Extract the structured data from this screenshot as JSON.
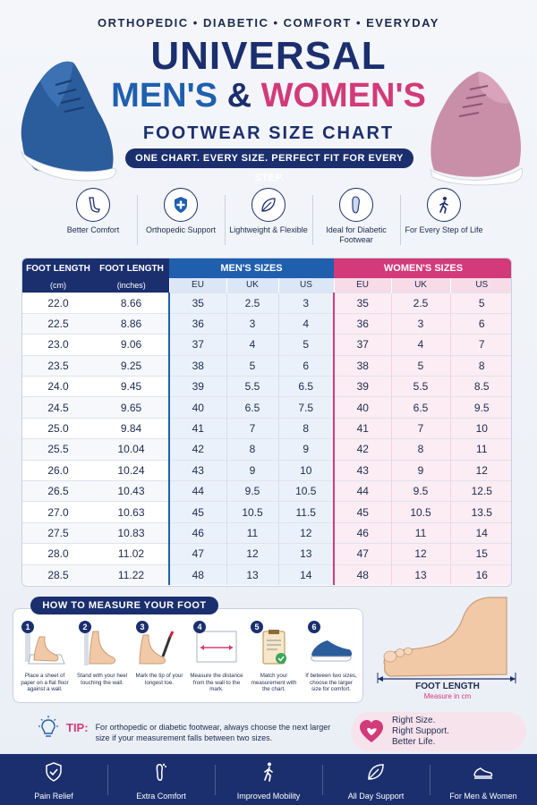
{
  "header": {
    "tagline": "ORTHOPEDIC • DIABETIC • COMFORT • EVERYDAY",
    "title_line1": "UNIVERSAL",
    "title_men": "MEN'S",
    "title_amp": "&",
    "title_women": "WOMEN'S",
    "title_line3": "FOOTWEAR SIZE CHART",
    "banner": "ONE CHART. EVERY SIZE. PERFECT FIT FOR EVERY STEP."
  },
  "colors": {
    "navy": "#1b2f6e",
    "men_blue": "#1f5fae",
    "women_pink": "#d23a7a"
  },
  "features": [
    {
      "icon": "foot-comfort-icon",
      "label": "Better Comfort"
    },
    {
      "icon": "shield-cross-icon",
      "label": "Orthopedic Support"
    },
    {
      "icon": "leaf-icon",
      "label": "Lightweight & Flexible"
    },
    {
      "icon": "insole-icon",
      "label": "Ideal for Diabetic Footwear"
    },
    {
      "icon": "walking-person-icon",
      "label": "For Every Step of Life"
    }
  ],
  "table": {
    "foot_length_cm_header": "FOOT LENGTH",
    "foot_length_cm_unit": "(cm)",
    "foot_length_in_header": "FOOT LENGTH",
    "foot_length_in_unit": "(inches)",
    "men_header": "MEN'S SIZES",
    "women_header": "WOMEN'S SIZES",
    "sub_headers": [
      "EU",
      "UK",
      "US"
    ],
    "rows": [
      [
        "22.0",
        "8.66",
        "35",
        "2.5",
        "3",
        "35",
        "2.5",
        "5"
      ],
      [
        "22.5",
        "8.86",
        "36",
        "3",
        "4",
        "36",
        "3",
        "6"
      ],
      [
        "23.0",
        "9.06",
        "37",
        "4",
        "5",
        "37",
        "4",
        "7"
      ],
      [
        "23.5",
        "9.25",
        "38",
        "5",
        "6",
        "38",
        "5",
        "8"
      ],
      [
        "24.0",
        "9.45",
        "39",
        "5.5",
        "6.5",
        "39",
        "5.5",
        "8.5"
      ],
      [
        "24.5",
        "9.65",
        "40",
        "6.5",
        "7.5",
        "40",
        "6.5",
        "9.5"
      ],
      [
        "25.0",
        "9.84",
        "41",
        "7",
        "8",
        "41",
        "7",
        "10"
      ],
      [
        "25.5",
        "10.04",
        "42",
        "8",
        "9",
        "42",
        "8",
        "11"
      ],
      [
        "26.0",
        "10.24",
        "43",
        "9",
        "10",
        "43",
        "9",
        "12"
      ],
      [
        "26.5",
        "10.43",
        "44",
        "9.5",
        "10.5",
        "44",
        "9.5",
        "12.5"
      ],
      [
        "27.0",
        "10.63",
        "45",
        "10.5",
        "11.5",
        "45",
        "10.5",
        "13.5"
      ],
      [
        "27.5",
        "10.83",
        "46",
        "11",
        "12",
        "46",
        "11",
        "14"
      ],
      [
        "28.0",
        "11.02",
        "47",
        "12",
        "13",
        "47",
        "12",
        "15"
      ],
      [
        "28.5",
        "11.22",
        "48",
        "13",
        "14",
        "48",
        "13",
        "16"
      ]
    ]
  },
  "measure": {
    "title": "HOW TO MEASURE YOUR FOOT",
    "steps": [
      {
        "num": "1",
        "text": "Place a sheet of paper on a flat floor against a wall."
      },
      {
        "num": "2",
        "text": "Stand with your heel touching the wall."
      },
      {
        "num": "3",
        "text": "Mark the tip of your longest toe."
      },
      {
        "num": "4",
        "text": "Measure the distance from the wall to the mark."
      },
      {
        "num": "5",
        "text": "Match your measurement with the chart."
      },
      {
        "num": "6",
        "text": "If between two sizes, choose the larger size for comfort."
      }
    ],
    "foot_length_label": "FOOT LENGTH",
    "foot_length_unit": "Measure in cm"
  },
  "tip": {
    "label": "TIP:",
    "text": "For orthopedic or diabetic footwear, always choose the next larger size if your measurement falls between two sizes."
  },
  "slogan": {
    "line1": "Right Size.",
    "line2": "Right Support.",
    "line3": "Better Life."
  },
  "footer": [
    {
      "icon": "shield-check-icon",
      "label": "Pain Relief"
    },
    {
      "icon": "foot-icon",
      "label": "Extra Comfort"
    },
    {
      "icon": "walking-person-icon",
      "label": "Improved Mobility"
    },
    {
      "icon": "leaf-icon",
      "label": "All Day Support"
    },
    {
      "icon": "sneaker-icon",
      "label": "For Men & Women"
    }
  ]
}
